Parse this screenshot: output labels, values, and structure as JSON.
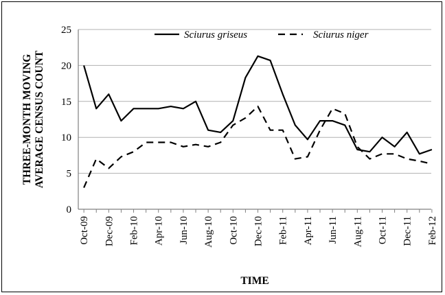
{
  "chart_data": {
    "type": "line",
    "xlabel": "TIME",
    "ylabel": [
      "THREE-MONTH MOVING",
      "AVERAGE CENSUS COUNT"
    ],
    "ylim": [
      0,
      25
    ],
    "yticks": [
      "0",
      "5",
      "10",
      "15",
      "20",
      "25"
    ],
    "grid": "horizontal",
    "legend_position": "top",
    "x": [
      "Oct-09",
      "Nov-09",
      "Dec-09",
      "Jan-10",
      "Feb-10",
      "Mar-10",
      "Apr-10",
      "May-10",
      "Jun-10",
      "Jul-10",
      "Aug-10",
      "Sep-10",
      "Oct-10",
      "Nov-10",
      "Dec-10",
      "Jan-11",
      "Feb-11",
      "Mar-11",
      "Apr-11",
      "May-11",
      "Jun-11",
      "Jul-11",
      "Aug-11",
      "Sep-11",
      "Oct-11",
      "Nov-11",
      "Dec-11",
      "Jan-12",
      "Feb-12"
    ],
    "tick_labels": [
      "Oct-09",
      "Dec-09",
      "Feb-10",
      "Apr-10",
      "Jun-10",
      "Aug-10",
      "Oct-10",
      "Dec-10",
      "Feb-11",
      "Apr-11",
      "Jun-11",
      "Aug-11",
      "Oct-11",
      "Dec-11",
      "Feb-12"
    ],
    "series": [
      {
        "name": "Sciurus griseus",
        "style": "solid",
        "color": "#000000",
        "values": [
          20.0,
          14.0,
          16.0,
          12.3,
          14.0,
          14.0,
          14.0,
          14.3,
          14.0,
          15.0,
          11.0,
          10.7,
          12.3,
          18.3,
          21.3,
          20.7,
          16.0,
          11.7,
          9.7,
          12.3,
          12.3,
          11.7,
          8.3,
          8.0,
          10.0,
          8.7,
          10.7,
          7.7,
          8.3
        ]
      },
      {
        "name": "Sciurus niger",
        "style": "dashed",
        "color": "#000000",
        "values": [
          3.0,
          7.0,
          5.7,
          7.3,
          8.0,
          9.3,
          9.3,
          9.3,
          8.7,
          9.0,
          8.7,
          9.3,
          11.7,
          12.7,
          14.3,
          11.0,
          11.0,
          7.0,
          7.3,
          11.0,
          14.0,
          13.3,
          8.7,
          7.0,
          7.7,
          7.7,
          7.0,
          6.7,
          6.3
        ]
      }
    ]
  }
}
